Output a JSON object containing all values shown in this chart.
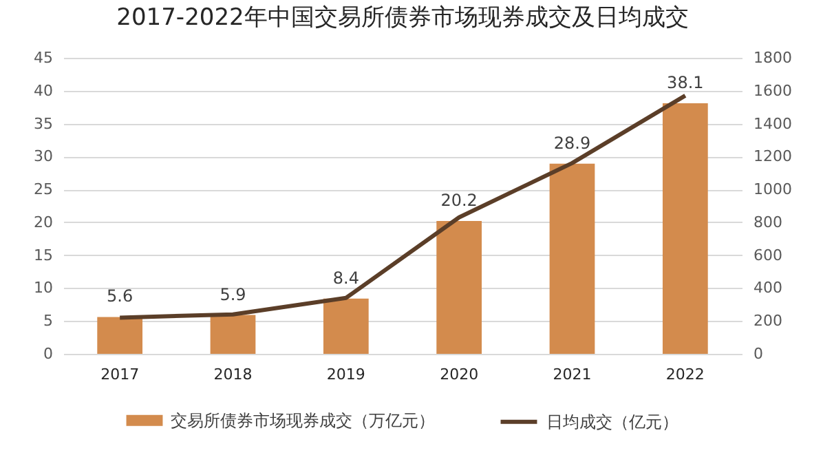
{
  "chart_data": {
    "type": "bar",
    "title": "2017-2022年中国交易所债券市场现券成交及日均成交",
    "categories": [
      "2017",
      "2018",
      "2019",
      "2020",
      "2021",
      "2022"
    ],
    "series": [
      {
        "name": "交易所债券市场现券成交（万亿元）",
        "color": "#d38b4d",
        "values": [
          5.6,
          5.9,
          8.4,
          20.2,
          28.9,
          38.1
        ],
        "value_labels": [
          "5.6",
          "5.9",
          "8.4",
          "20.2",
          "28.9",
          "38.1"
        ]
      },
      {
        "name": "日均成交（亿元）",
        "type": "line",
        "axis": "y2",
        "color": "#5b3e28",
        "values": [
          220,
          240,
          340,
          830,
          1160,
          1570
        ]
      }
    ],
    "ylim": [
      0,
      45
    ],
    "yticks": [
      0,
      5,
      10,
      15,
      20,
      25,
      30,
      35,
      40,
      45
    ],
    "y2lim": [
      0,
      1800
    ],
    "y2ticks": [
      0,
      200,
      400,
      600,
      800,
      1000,
      1200,
      1400,
      1600,
      1800
    ],
    "grid": "y",
    "legend": "bottom"
  }
}
